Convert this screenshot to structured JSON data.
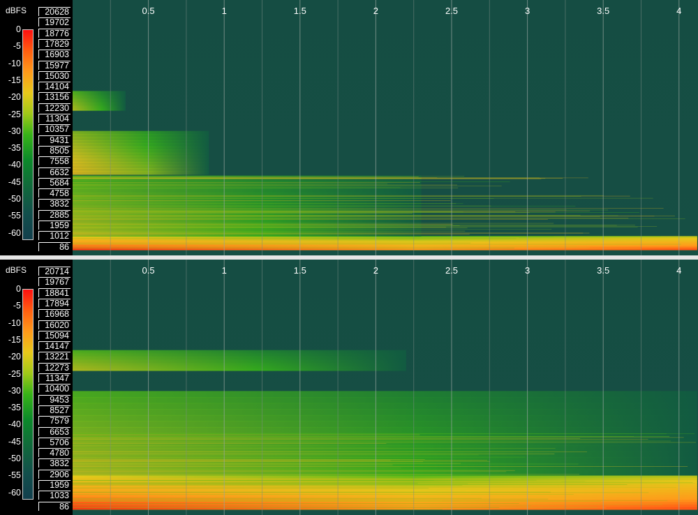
{
  "chart_data": [
    {
      "type": "heatmap",
      "title": "",
      "colorbar": {
        "label": "dBFS",
        "ticks": [
          "0",
          "-5",
          "-10",
          "-15",
          "-20",
          "-25",
          "-30",
          "-35",
          "-40",
          "-45",
          "-50",
          "-55",
          "-60"
        ],
        "range": [
          -60,
          0
        ],
        "colors": [
          "#ff1010",
          "#ff9a1a",
          "#e8c81a",
          "#38b418",
          "#11693c",
          "#123f4d"
        ]
      },
      "y_axis": {
        "unit": "Hz",
        "ticks": [
          "20628",
          "19702",
          "18776",
          "17829",
          "16903",
          "15977",
          "15030",
          "14104",
          "13156",
          "12230",
          "11304",
          "10357",
          "9431",
          "8505",
          "7558",
          "6632",
          "5684",
          "4758",
          "3832",
          "2885",
          "1959",
          "1012",
          "86"
        ]
      },
      "x_axis": {
        "unit": "s",
        "ticks": [
          "0.5",
          "1",
          "1.5",
          "2",
          "2.5",
          "3",
          "3.5",
          "4"
        ],
        "range": [
          0.0,
          4.12
        ]
      },
      "features": [
        {
          "band_hz": [
            0,
            1200
          ],
          "level": "loud (red/orange)",
          "time_s": [
            0.0,
            4.12
          ]
        },
        {
          "band_hz": [
            1200,
            6500
          ],
          "level": "green, decays",
          "time_s": [
            0.0,
            2.3
          ]
        },
        {
          "band_hz": [
            6600,
            10400
          ],
          "level": "yellow-green, decays",
          "time_s": [
            0.0,
            0.9
          ]
        },
        {
          "band_hz": [
            12200,
            13900
          ],
          "level": "green",
          "time_s": [
            0.0,
            0.35
          ]
        }
      ]
    },
    {
      "type": "heatmap",
      "title": "",
      "colorbar": {
        "label": "dBFS",
        "ticks": [
          "0",
          "-5",
          "-10",
          "-15",
          "-20",
          "-25",
          "-30",
          "-35",
          "-40",
          "-45",
          "-50",
          "-55",
          "-60"
        ],
        "range": [
          -60,
          0
        ],
        "colors": [
          "#ff1010",
          "#ff9a1a",
          "#e8c81a",
          "#38b418",
          "#11693c",
          "#123f4d"
        ]
      },
      "y_axis": {
        "unit": "Hz",
        "ticks": [
          "20714",
          "19767",
          "18841",
          "17894",
          "16968",
          "16020",
          "15094",
          "14147",
          "13221",
          "12273",
          "11347",
          "10400",
          "9453",
          "8527",
          "7579",
          "6653",
          "5706",
          "4780",
          "3832",
          "2906",
          "1959",
          "1033",
          "86"
        ]
      },
      "x_axis": {
        "unit": "s",
        "ticks": [
          "0.5",
          "1",
          "1.5",
          "2",
          "2.5",
          "3",
          "3.5",
          "4"
        ],
        "range": [
          0.0,
          4.12
        ]
      },
      "features": [
        {
          "band_hz": [
            0,
            3000
          ],
          "level": "loud (red/orange/yellow)",
          "time_s": [
            0.0,
            4.12
          ]
        },
        {
          "band_hz": [
            3000,
            10400
          ],
          "level": "green/yellow, long decay",
          "time_s": [
            0.0,
            4.12
          ]
        },
        {
          "band_hz": [
            12200,
            14000
          ],
          "level": "green, faint",
          "time_s": [
            0.0,
            2.2
          ]
        }
      ]
    }
  ]
}
